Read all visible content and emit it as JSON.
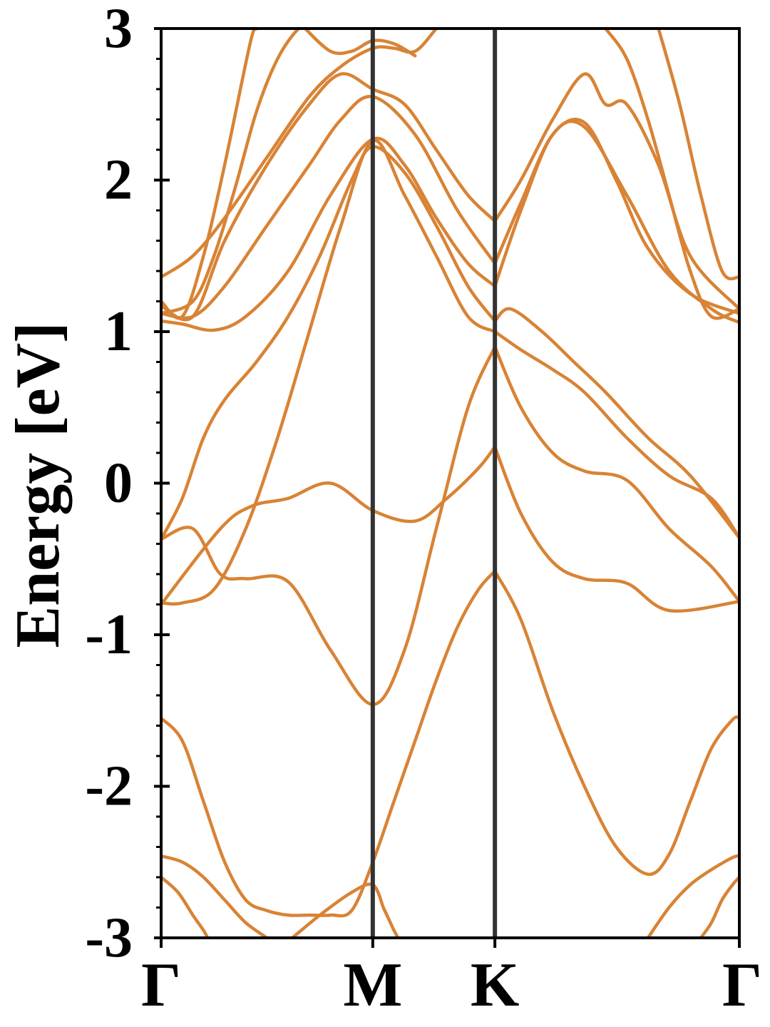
{
  "chart_data": {
    "type": "line",
    "title": "",
    "xlabel": "",
    "ylabel": "Energy [eV]",
    "ylim": [
      -3,
      3
    ],
    "x_range": [
      0,
      2.732
    ],
    "y_ticks": [
      {
        "value": 3,
        "label": "3"
      },
      {
        "value": 2,
        "label": "2"
      },
      {
        "value": 1,
        "label": "1"
      },
      {
        "value": 0,
        "label": "0"
      },
      {
        "value": -1,
        "label": "-1"
      },
      {
        "value": -2,
        "label": "-2"
      },
      {
        "value": -3,
        "label": "-3"
      }
    ],
    "y_minor_step": 0.2,
    "x_ticks": [
      {
        "value": 0,
        "label": "Γ"
      },
      {
        "value": 1.0,
        "label": "M"
      },
      {
        "value": 1.577,
        "label": "K"
      },
      {
        "value": 2.732,
        "label": "Γ"
      }
    ],
    "vlines": [
      1.0,
      1.577
    ],
    "vline_color": "#333333",
    "band_color": "#d88335",
    "grid": false,
    "series": [
      {
        "x": [
          0,
          0.28,
          0.43,
          0.6,
          0.8,
          1.0,
          1.2,
          1.35,
          1.5,
          1.577
        ],
        "y": [
          -0.8,
          -0.3,
          -0.15,
          -0.1,
          0.0,
          -0.18,
          -0.25,
          -0.1,
          0.1,
          0.24
        ]
      },
      {
        "x": [
          1.577,
          1.7,
          1.85,
          2.0,
          2.2,
          2.4,
          2.732
        ],
        "y": [
          0.24,
          -0.2,
          -0.52,
          -0.63,
          -0.66,
          -0.84,
          -0.78
        ]
      },
      {
        "x": [
          0,
          0.15,
          0.28,
          0.4,
          0.6,
          0.8,
          1.0,
          1.15,
          1.3,
          1.45,
          1.577
        ],
        "y": [
          -0.37,
          -0.3,
          -0.6,
          -0.63,
          -0.65,
          -1.1,
          -1.46,
          -1.1,
          -0.3,
          0.5,
          0.9
        ]
      },
      {
        "x": [
          1.577,
          1.7,
          1.85,
          2.0,
          2.2,
          2.4,
          2.6,
          2.732
        ],
        "y": [
          0.9,
          0.5,
          0.2,
          0.08,
          0.02,
          -0.3,
          -0.55,
          -0.78
        ]
      },
      {
        "x": [
          0,
          0.1,
          0.25,
          0.4,
          0.55,
          0.7,
          0.85,
          1.0,
          1.15,
          1.3,
          1.45,
          1.577
        ],
        "y": [
          -0.79,
          -0.79,
          -0.7,
          -0.3,
          0.3,
          1.0,
          1.7,
          2.26,
          1.9,
          1.5,
          1.1,
          1.0
        ]
      },
      {
        "x": [
          1.577,
          1.7,
          1.85,
          2.0,
          2.2,
          2.4,
          2.6,
          2.732
        ],
        "y": [
          1.0,
          0.88,
          0.75,
          0.6,
          0.3,
          0.05,
          -0.1,
          -0.36
        ]
      },
      {
        "x": [
          0,
          0.1,
          0.2,
          0.3,
          0.45,
          0.6,
          0.75,
          0.9,
          1.0,
          1.15,
          1.3,
          1.45,
          1.577
        ],
        "y": [
          -0.37,
          -0.1,
          0.3,
          0.55,
          0.8,
          1.1,
          1.5,
          2.0,
          2.22,
          2.05,
          1.7,
          1.3,
          1.07
        ]
      },
      {
        "x": [
          1.577,
          1.65,
          1.8,
          1.95,
          2.1,
          2.3,
          2.5,
          2.732
        ],
        "y": [
          1.07,
          1.15,
          1.0,
          0.8,
          0.6,
          0.3,
          0.05,
          -0.36
        ]
      },
      {
        "x": [
          0,
          0.1,
          0.25,
          0.4,
          0.6,
          0.8,
          1.0,
          1.15,
          1.3,
          1.45,
          1.577
        ],
        "y": [
          1.07,
          1.05,
          1.01,
          1.1,
          1.4,
          1.9,
          2.27,
          2.1,
          1.75,
          1.45,
          1.3
        ]
      },
      {
        "x": [
          1.577,
          1.7,
          1.85,
          2.0,
          2.2,
          2.4,
          2.6,
          2.732
        ],
        "y": [
          1.3,
          1.8,
          2.3,
          2.35,
          1.9,
          1.4,
          1.15,
          1.06
        ]
      },
      {
        "x": [
          0,
          0.15,
          0.3,
          0.5,
          0.7,
          0.85,
          1.0,
          1.2,
          1.4,
          1.577
        ],
        "y": [
          1.12,
          1.1,
          1.3,
          1.7,
          2.1,
          2.4,
          2.55,
          2.3,
          1.8,
          1.45
        ]
      },
      {
        "x": [
          1.577,
          1.7,
          1.85,
          2.0,
          2.15,
          2.3,
          2.5,
          2.732
        ],
        "y": [
          1.45,
          1.85,
          2.3,
          2.38,
          2.0,
          1.55,
          1.25,
          1.12
        ]
      },
      {
        "x": [
          0,
          0.15,
          0.3,
          0.5,
          0.7,
          0.85,
          1.0,
          1.15,
          1.3,
          1.45,
          1.577
        ],
        "y": [
          1.17,
          1.1,
          1.6,
          2.1,
          2.5,
          2.7,
          2.6,
          2.5,
          2.2,
          1.9,
          1.73
        ]
      },
      {
        "x": [
          1.577,
          1.7,
          1.85,
          2.0,
          2.1,
          2.2,
          2.35,
          2.5,
          2.732
        ],
        "y": [
          1.73,
          2.0,
          2.4,
          2.7,
          2.5,
          2.5,
          2.1,
          1.5,
          1.15
        ]
      },
      {
        "x": [
          0,
          0.15,
          0.3,
          0.5,
          0.7,
          0.85,
          1.0,
          1.1,
          1.2,
          1.3
        ],
        "y": [
          1.36,
          1.5,
          1.75,
          2.15,
          2.55,
          2.75,
          2.87,
          2.87,
          2.85,
          3.0
        ]
      },
      {
        "x": [
          0,
          0.1,
          0.2,
          0.3,
          0.42,
          0.45
        ],
        "y": [
          1.2,
          1.1,
          1.5,
          2.1,
          2.9,
          3.0
        ]
      },
      {
        "x": [
          0,
          0.15,
          0.25,
          0.35,
          0.45,
          0.55,
          0.65,
          0.7
        ],
        "y": [
          1.12,
          1.2,
          1.5,
          1.95,
          2.45,
          2.8,
          3.0,
          3.0
        ]
      },
      {
        "x": [
          0.68,
          0.8,
          0.9,
          1.0,
          1.1,
          1.2
        ],
        "y": [
          3.0,
          2.85,
          2.85,
          2.92,
          2.9,
          2.82
        ]
      },
      {
        "x": [
          2.1,
          2.2,
          2.3,
          2.4,
          2.5,
          2.6,
          2.732
        ],
        "y": [
          3.0,
          2.8,
          2.4,
          1.9,
          1.4,
          1.1,
          1.15
        ]
      },
      {
        "x": [
          2.35,
          2.45,
          2.55,
          2.65,
          2.732
        ],
        "y": [
          3.0,
          2.5,
          1.9,
          1.4,
          1.36
        ]
      },
      {
        "x": [
          0,
          0.1,
          0.2,
          0.3,
          0.4,
          0.5,
          0.6,
          0.7,
          0.8,
          0.9,
          1.0,
          1.1,
          1.2,
          1.3,
          1.4,
          1.5,
          1.577
        ],
        "y": [
          -1.55,
          -1.7,
          -2.1,
          -2.5,
          -2.75,
          -2.82,
          -2.85,
          -2.85,
          -2.85,
          -2.82,
          -2.5,
          -2.1,
          -1.7,
          -1.3,
          -0.95,
          -0.7,
          -0.58
        ]
      },
      {
        "x": [
          1.577,
          1.7,
          1.85,
          2.0,
          2.15,
          2.3,
          2.4,
          2.5,
          2.6,
          2.7,
          2.732
        ],
        "y": [
          -0.58,
          -0.9,
          -1.5,
          -2.0,
          -2.4,
          -2.58,
          -2.45,
          -2.1,
          -1.75,
          -1.56,
          -1.55
        ]
      },
      {
        "x": [
          0,
          0.1,
          0.2,
          0.3,
          0.4,
          0.5
        ],
        "y": [
          -2.46,
          -2.5,
          -2.6,
          -2.75,
          -2.9,
          -3.0
        ]
      },
      {
        "x": [
          0.62,
          0.75,
          0.9,
          1.0,
          1.05
        ],
        "y": [
          -3.0,
          -2.85,
          -2.7,
          -2.65,
          -2.8
        ]
      },
      {
        "x": [
          1.05,
          1.1,
          1.12
        ],
        "y": [
          -2.8,
          -2.95,
          -3.0
        ]
      },
      {
        "x": [
          2.3,
          2.4,
          2.5,
          2.6,
          2.7,
          2.732
        ],
        "y": [
          -3.0,
          -2.8,
          -2.65,
          -2.55,
          -2.47,
          -2.46
        ]
      },
      {
        "x": [
          0,
          0.08,
          0.15,
          0.2,
          0.22
        ],
        "y": [
          -2.6,
          -2.7,
          -2.85,
          -2.95,
          -3.0
        ]
      },
      {
        "x": [
          2.55,
          2.6,
          2.65,
          2.7,
          2.732
        ],
        "y": [
          -3.0,
          -2.9,
          -2.75,
          -2.65,
          -2.6
        ]
      }
    ]
  }
}
